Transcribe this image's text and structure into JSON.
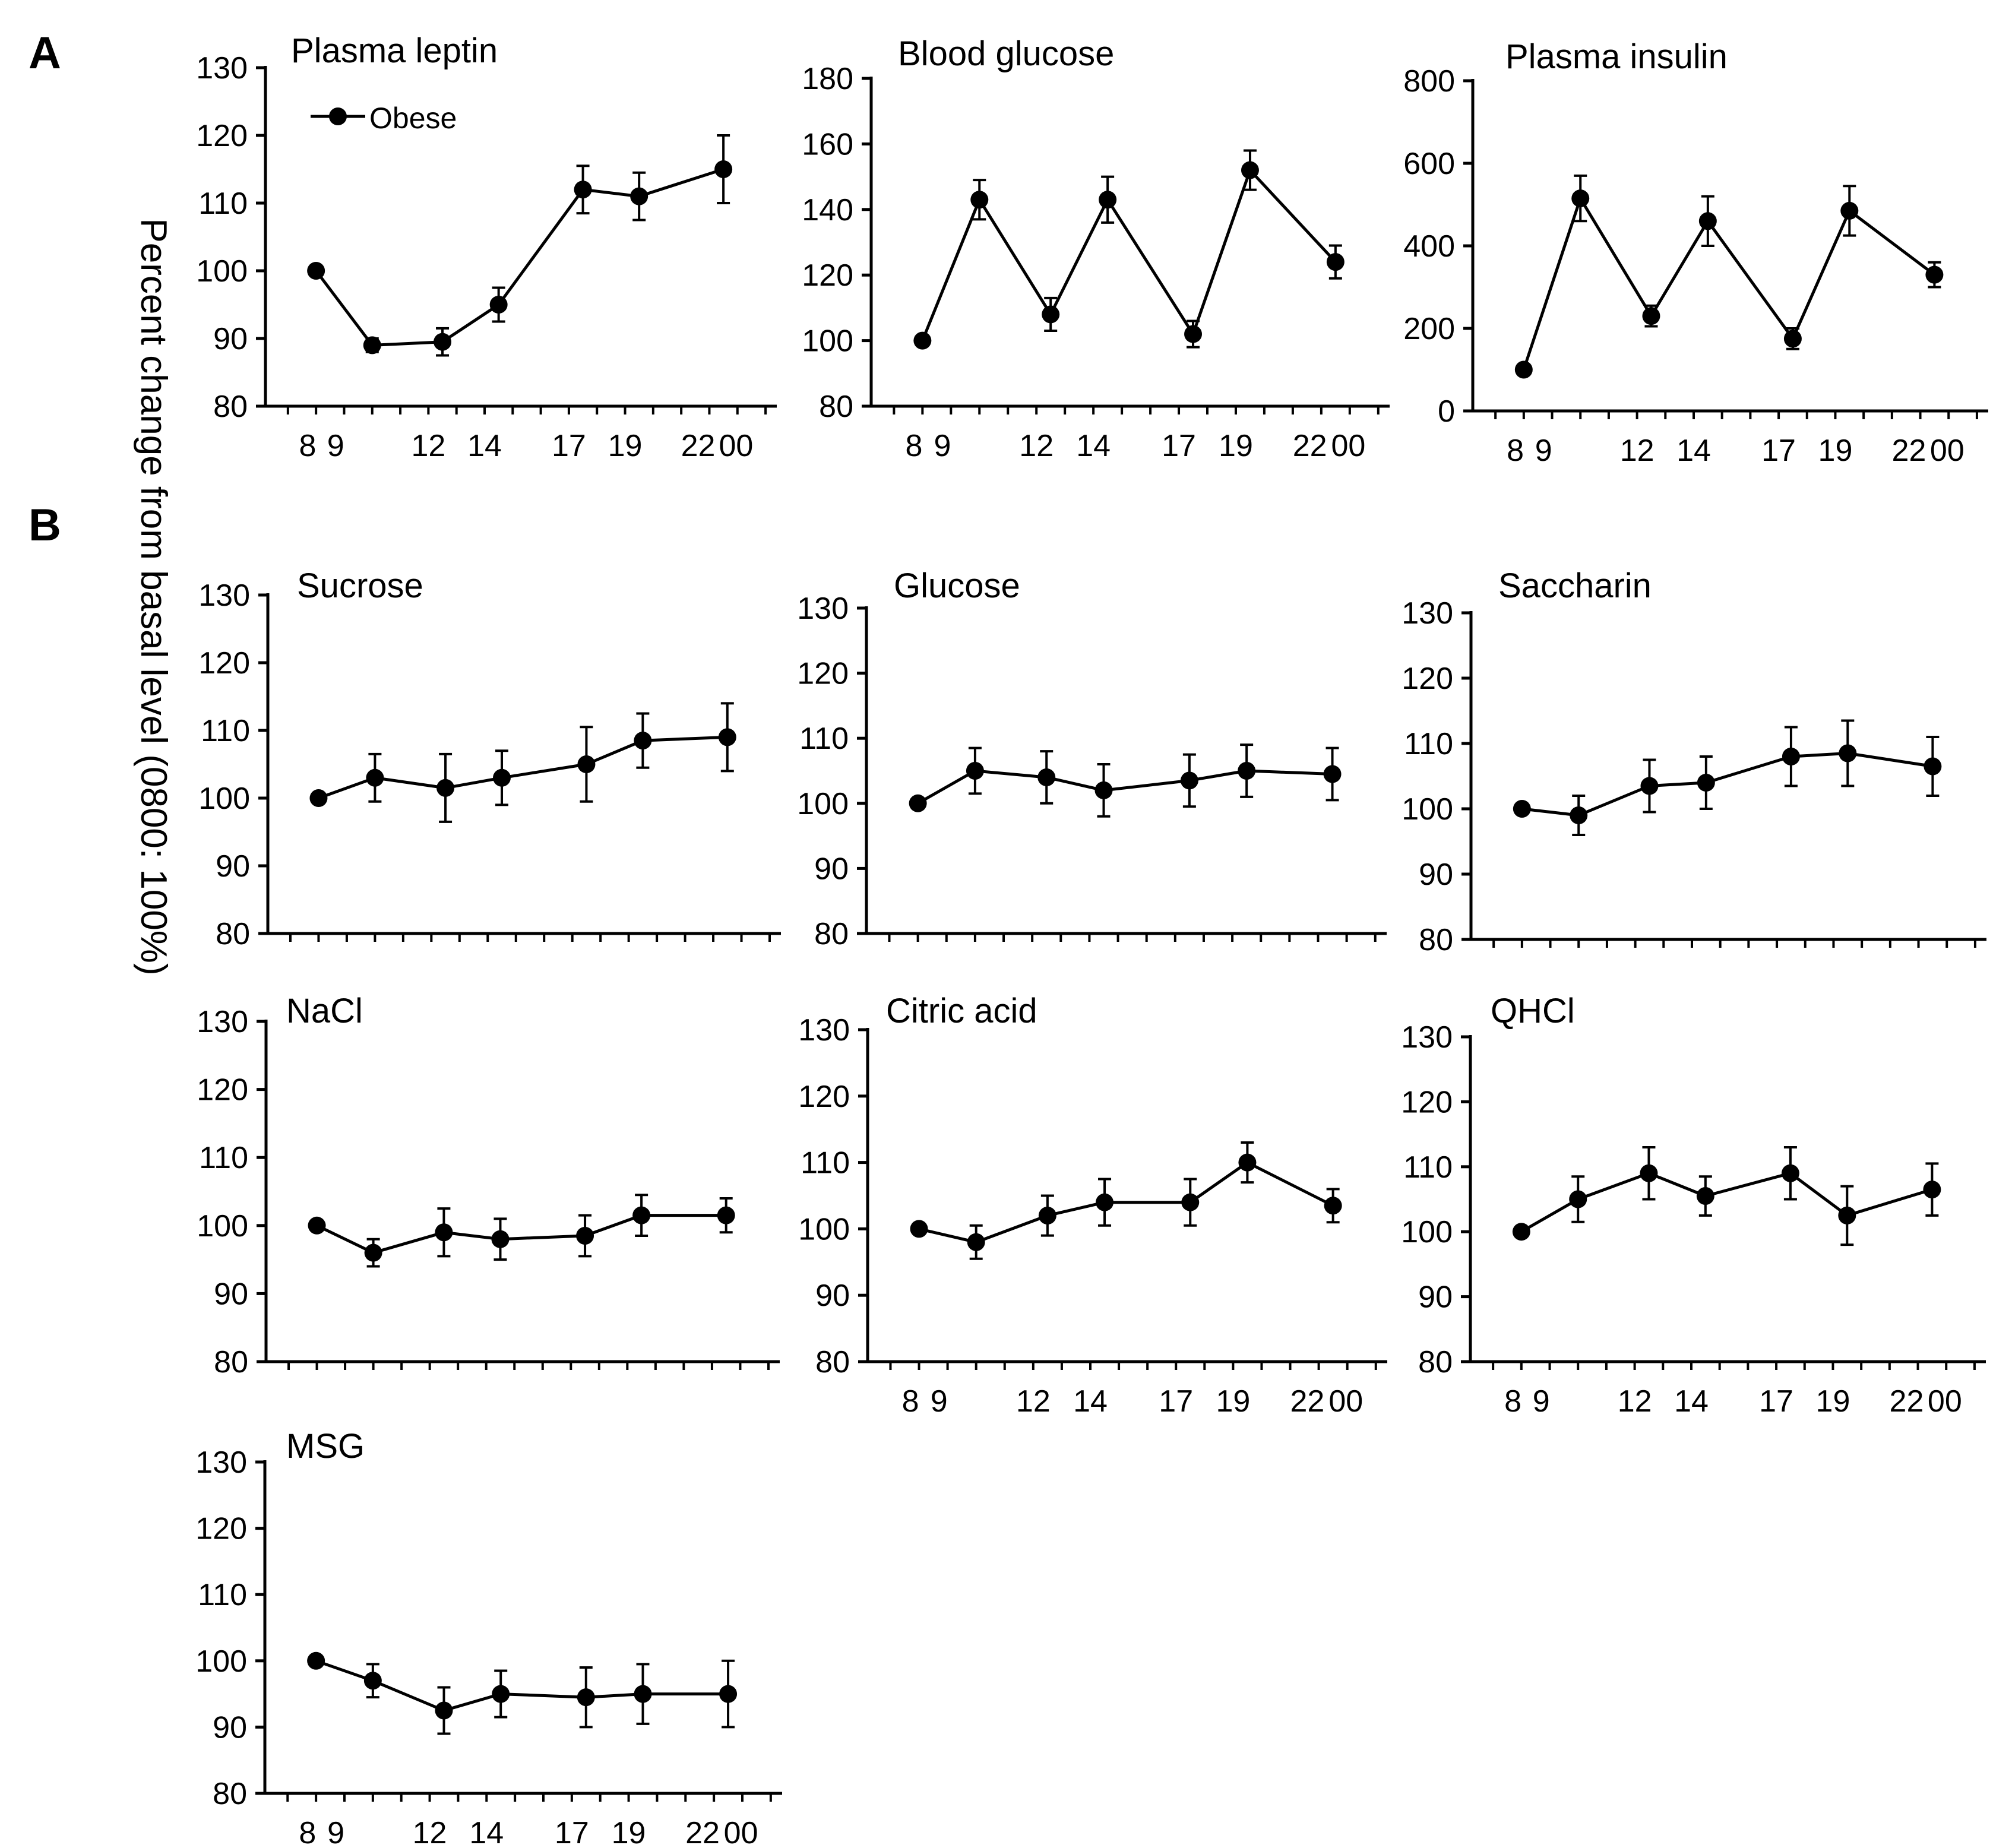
{
  "figure": {
    "panel_labels": [
      "A",
      "B"
    ],
    "y_axis_label": "Percent change from basal level (0800: 100%)"
  },
  "chart_data": [
    {
      "type": "line",
      "panel": "A",
      "title": "Plasma leptin",
      "xlabel": "",
      "ylabel": "Percent change from basal level (0800: 100%)",
      "ylim": [
        80,
        130
      ],
      "y_ticks": [
        80,
        90,
        100,
        110,
        120,
        130
      ],
      "x_ticks": [
        "8",
        "9",
        "12",
        "14",
        "17",
        "19",
        "22",
        "00"
      ],
      "legend": [
        {
          "label": "Obese",
          "marker": "filled-circle",
          "location": "top-left"
        }
      ],
      "series": [
        {
          "name": "Obese",
          "x": [
            8,
            10,
            12.5,
            14.5,
            17.5,
            19.5,
            22.5
          ],
          "values": [
            100,
            89,
            89.5,
            95,
            112,
            111,
            115
          ],
          "errors": [
            0,
            1,
            2,
            2.5,
            3.5,
            3.5,
            5
          ]
        }
      ]
    },
    {
      "type": "line",
      "panel": "A",
      "title": "Blood glucose",
      "ylim": [
        80,
        180
      ],
      "y_ticks": [
        80,
        100,
        120,
        140,
        160,
        180
      ],
      "x_ticks": [
        "8",
        "9",
        "12",
        "14",
        "17",
        "19",
        "22",
        "00"
      ],
      "series": [
        {
          "name": "Obese",
          "x": [
            8,
            10,
            12.5,
            14.5,
            17.5,
            19.5,
            22.5
          ],
          "values": [
            100,
            143,
            108,
            143,
            102,
            152,
            124
          ],
          "errors": [
            0,
            6,
            5,
            7,
            4,
            6,
            5
          ]
        }
      ]
    },
    {
      "type": "line",
      "panel": "A",
      "title": "Plasma insulin",
      "ylim": [
        0,
        800
      ],
      "y_ticks": [
        0,
        200,
        400,
        600,
        800
      ],
      "x_ticks": [
        "8",
        "9",
        "12",
        "14",
        "17",
        "19",
        "22",
        "00"
      ],
      "series": [
        {
          "name": "Obese",
          "x": [
            8,
            10,
            12.5,
            14.5,
            17.5,
            19.5,
            22.5
          ],
          "values": [
            100,
            515,
            230,
            460,
            175,
            485,
            330
          ],
          "errors": [
            0,
            55,
            25,
            60,
            25,
            60,
            30
          ]
        }
      ]
    },
    {
      "type": "line",
      "panel": "B",
      "title": "Sucrose",
      "ylim": [
        80,
        130
      ],
      "y_ticks": [
        80,
        90,
        100,
        110,
        120,
        130
      ],
      "x_ticks": [],
      "series": [
        {
          "name": "Obese",
          "x": [
            8,
            10,
            12.5,
            14.5,
            17.5,
            19.5,
            22.5
          ],
          "values": [
            100,
            103,
            101.5,
            103,
            105,
            108.5,
            109
          ],
          "errors": [
            0,
            3.5,
            5,
            4,
            5.5,
            4,
            5
          ]
        }
      ]
    },
    {
      "type": "line",
      "panel": "B",
      "title": "Glucose",
      "ylim": [
        80,
        130
      ],
      "y_ticks": [
        80,
        90,
        100,
        110,
        120,
        130
      ],
      "x_ticks": [],
      "series": [
        {
          "name": "Obese",
          "x": [
            8,
            10,
            12.5,
            14.5,
            17.5,
            19.5,
            22.5
          ],
          "values": [
            100,
            105,
            104,
            102,
            103.5,
            105,
            104.5
          ],
          "errors": [
            0,
            3.5,
            4,
            4,
            4,
            4,
            4
          ]
        }
      ]
    },
    {
      "type": "line",
      "panel": "B",
      "title": "Saccharin",
      "ylim": [
        80,
        130
      ],
      "y_ticks": [
        80,
        90,
        100,
        110,
        120,
        130
      ],
      "x_ticks": [],
      "series": [
        {
          "name": "Obese",
          "x": [
            8,
            10,
            12.5,
            14.5,
            17.5,
            19.5,
            22.5
          ],
          "values": [
            100,
            99,
            103.5,
            104,
            108,
            108.5,
            106.5
          ],
          "errors": [
            0,
            3,
            4,
            4,
            4.5,
            5,
            4.5
          ]
        }
      ]
    },
    {
      "type": "line",
      "panel": "B",
      "title": "NaCl",
      "ylim": [
        80,
        130
      ],
      "y_ticks": [
        80,
        90,
        100,
        110,
        120,
        130
      ],
      "x_ticks": [],
      "series": [
        {
          "name": "Obese",
          "x": [
            8,
            10,
            12.5,
            14.5,
            17.5,
            19.5,
            22.5
          ],
          "values": [
            100,
            96,
            99,
            98,
            98.5,
            101.5,
            101.5
          ],
          "errors": [
            0,
            2,
            3.5,
            3,
            3,
            3,
            2.5
          ]
        }
      ]
    },
    {
      "type": "line",
      "panel": "B",
      "title": "Citric acid",
      "ylim": [
        80,
        130
      ],
      "y_ticks": [
        80,
        90,
        100,
        110,
        120,
        130
      ],
      "x_ticks": [
        "8",
        "9",
        "12",
        "14",
        "17",
        "19",
        "22",
        "00"
      ],
      "series": [
        {
          "name": "Obese",
          "x": [
            8,
            10,
            12.5,
            14.5,
            17.5,
            19.5,
            22.5
          ],
          "values": [
            100,
            98,
            102,
            104,
            104,
            110,
            103.5
          ],
          "errors": [
            0,
            2.5,
            3,
            3.5,
            3.5,
            3,
            2.5
          ]
        }
      ]
    },
    {
      "type": "line",
      "panel": "B",
      "title": "QHCl",
      "ylim": [
        80,
        130
      ],
      "y_ticks": [
        80,
        90,
        100,
        110,
        120,
        130
      ],
      "x_ticks": [
        "8",
        "9",
        "12",
        "14",
        "17",
        "19",
        "22",
        "00"
      ],
      "series": [
        {
          "name": "Obese",
          "x": [
            8,
            10,
            12.5,
            14.5,
            17.5,
            19.5,
            22.5
          ],
          "values": [
            100,
            105,
            109,
            105.5,
            109,
            102.5,
            106.5
          ],
          "errors": [
            0,
            3.5,
            4,
            3,
            4,
            4.5,
            4
          ]
        }
      ]
    },
    {
      "type": "line",
      "panel": "B",
      "title": "MSG",
      "ylim": [
        80,
        130
      ],
      "y_ticks": [
        80,
        90,
        100,
        110,
        120,
        130
      ],
      "x_ticks": [
        "8",
        "9",
        "12",
        "14",
        "17",
        "19",
        "22",
        "00"
      ],
      "series": [
        {
          "name": "Obese",
          "x": [
            8,
            10,
            12.5,
            14.5,
            17.5,
            19.5,
            22.5
          ],
          "values": [
            100,
            97,
            92.5,
            95,
            94.5,
            95,
            95
          ],
          "errors": [
            0,
            2.5,
            3.5,
            3.5,
            4.5,
            4.5,
            5
          ]
        }
      ]
    }
  ]
}
